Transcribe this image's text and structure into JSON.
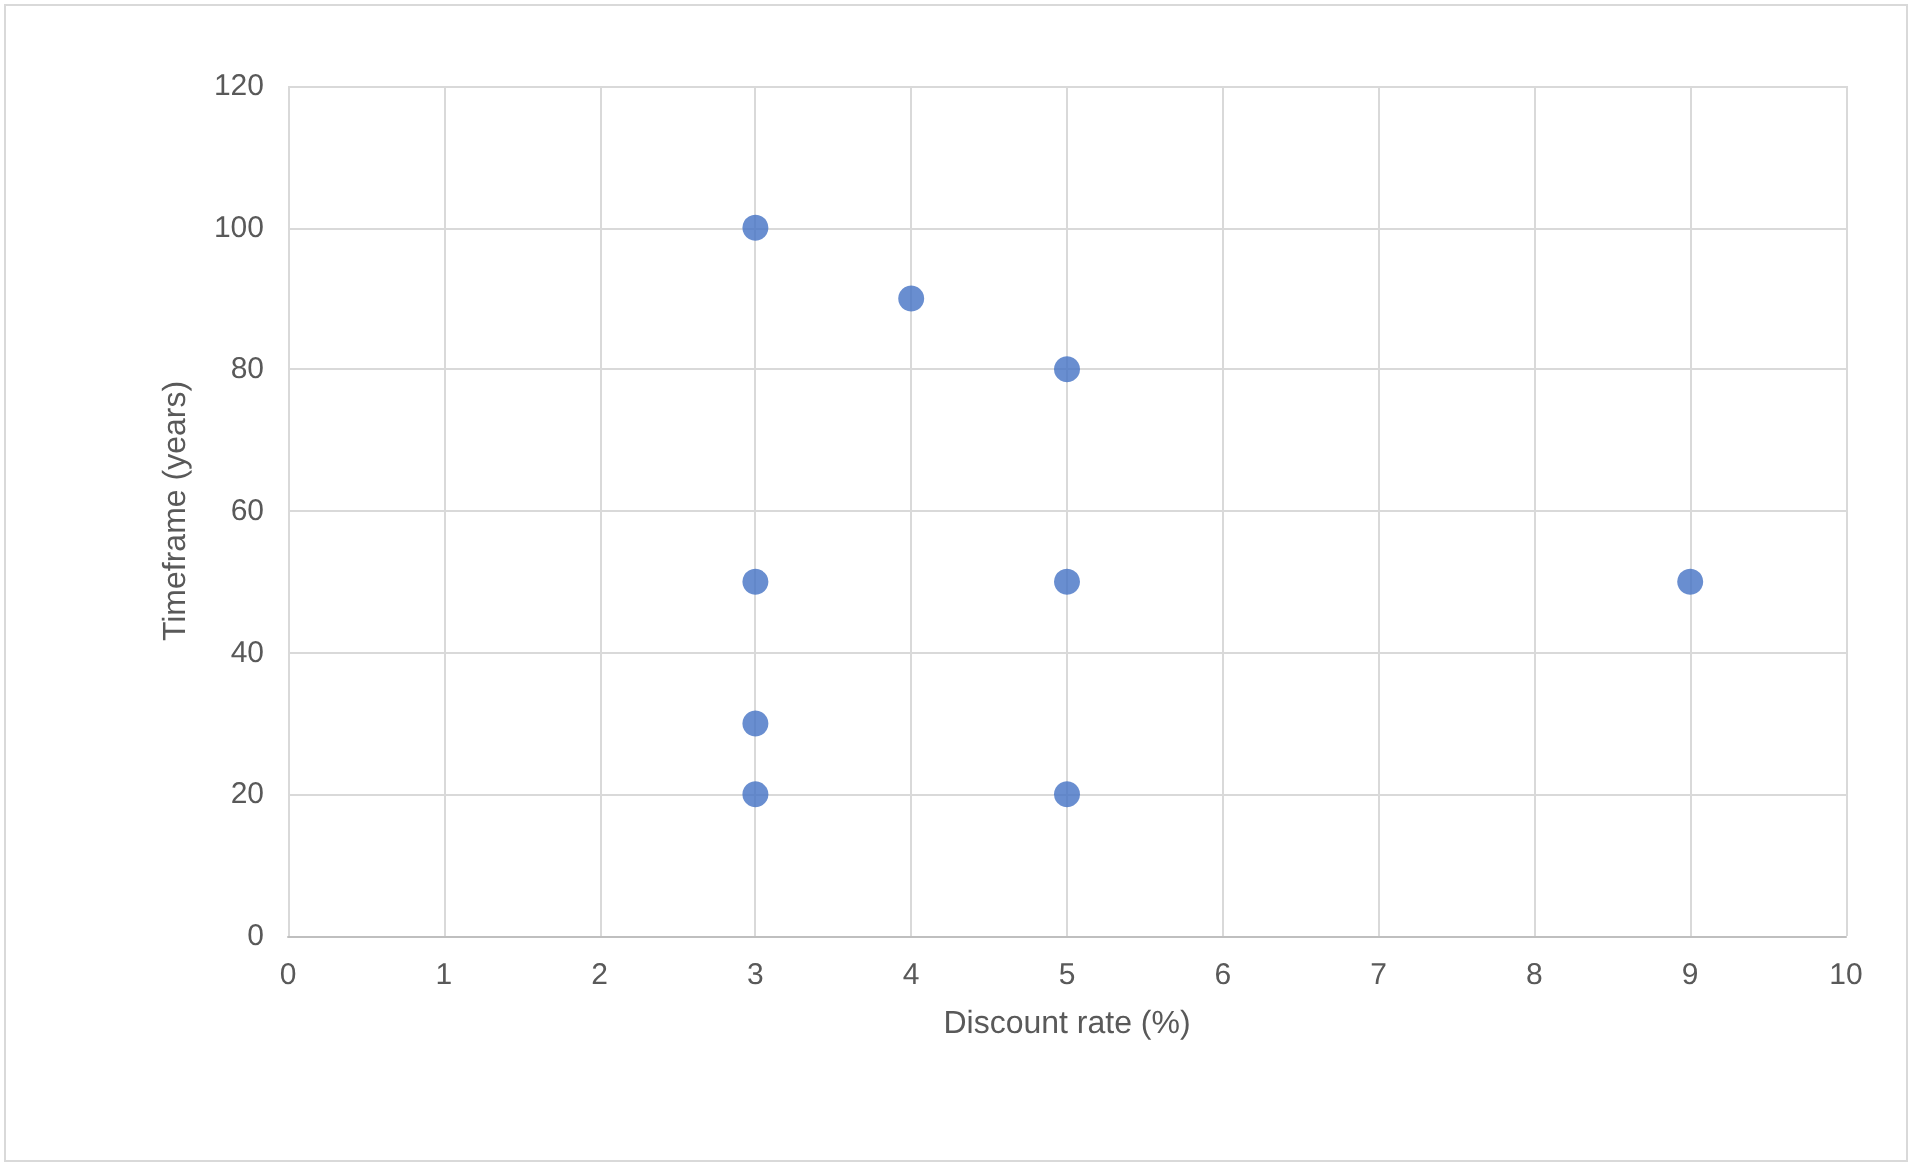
{
  "chart_data": {
    "type": "scatter",
    "xlabel": "Discount rate (%)",
    "ylabel": "Timeframe (years)",
    "x": [
      3,
      4,
      5,
      3,
      5,
      9,
      3,
      3,
      5
    ],
    "values": [
      100,
      90,
      80,
      50,
      50,
      50,
      30,
      20,
      20
    ],
    "color": "#4472c4",
    "xlim": [
      0,
      10
    ],
    "xticks": [
      0,
      1,
      2,
      3,
      4,
      5,
      6,
      7,
      8,
      9,
      10
    ],
    "ylim": [
      0,
      120
    ],
    "yticks": [
      0,
      20,
      40,
      60,
      80,
      100,
      120
    ],
    "grid": true,
    "marker": "circle"
  }
}
